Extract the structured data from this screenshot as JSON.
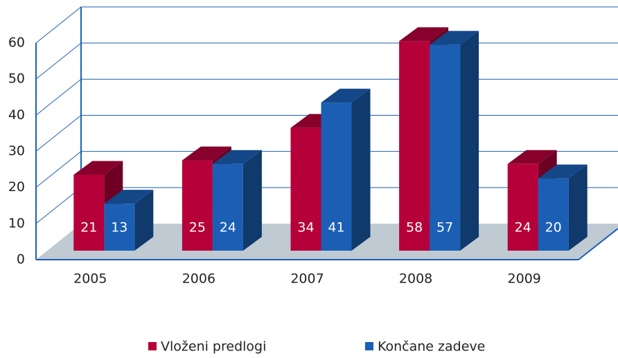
{
  "chart_data": {
    "type": "bar3d",
    "categories": [
      "2005",
      "2006",
      "2007",
      "2008",
      "2009"
    ],
    "series": [
      {
        "name": "Vloženi predlogi",
        "color": "#b5003a",
        "values": [
          21,
          25,
          34,
          58,
          24
        ]
      },
      {
        "name": "Končane zadeve",
        "color": "#1a5fb4",
        "values": [
          13,
          24,
          41,
          57,
          20
        ]
      }
    ],
    "ylim": [
      0,
      60
    ],
    "yticks": [
      0,
      10,
      20,
      30,
      40,
      50,
      60
    ],
    "grid": true,
    "legend": "bottom"
  }
}
